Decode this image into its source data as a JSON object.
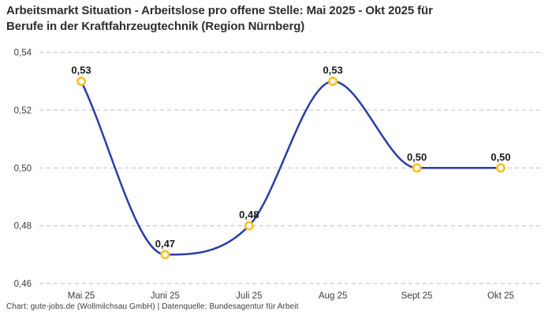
{
  "title": "Arbeitsmarkt Situation - Arbeitslose pro offene Stelle: Mai 2025 - Okt 2025 für\nBerufe in der Kraftfahrzeugtechnik (Region Nürnberg)",
  "footer": "Chart: gute-jobs.de (Wollmilchsau GmbH) | Datenquelle: Bundesagentur für Arbeit",
  "chart_data": {
    "type": "line",
    "title": "Arbeitsmarkt Situation - Arbeitslose pro offene Stelle: Mai 2025 - Okt 2025 für Berufe in der Kraftfahrzeugtechnik (Region Nürnberg)",
    "categories": [
      "Mai 25",
      "Juni 25",
      "Juli 25",
      "Aug 25",
      "Sept 25",
      "Okt 25"
    ],
    "values": [
      0.53,
      0.47,
      0.48,
      0.53,
      0.5,
      0.5
    ],
    "value_labels": [
      "0,53",
      "0,47",
      "0,48",
      "0,53",
      "0,50",
      "0,50"
    ],
    "y_ticks": [
      {
        "value": 0.54,
        "label": "0,54"
      },
      {
        "value": 0.52,
        "label": "0,52"
      },
      {
        "value": 0.5,
        "label": "0,50"
      },
      {
        "value": 0.48,
        "label": "0,48"
      },
      {
        "value": 0.46,
        "label": "0,46"
      }
    ],
    "ylim": [
      0.46,
      0.54
    ],
    "xlabel": "",
    "ylabel": "",
    "grid": "horizontal-dashed",
    "legend": "none",
    "curve": "smooth-monotone",
    "colors": {
      "line": "#2b3ca7",
      "marker_ring": "#f7c325",
      "marker_fill": "#ffffff",
      "grid": "#cbcbcb",
      "tick_text": "#3c3c3c",
      "point_label_text": "#1a1a1a"
    }
  }
}
